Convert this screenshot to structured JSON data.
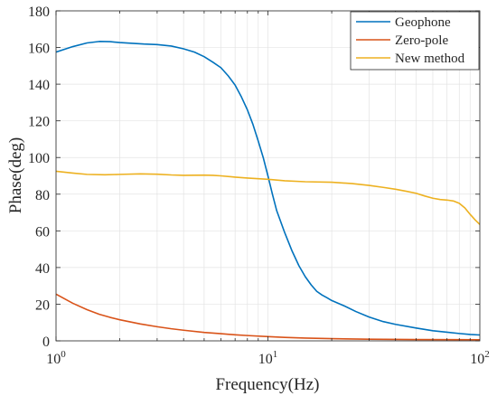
{
  "chart_data": {
    "type": "line",
    "title": "",
    "xlabel": "Frequency(Hz)",
    "ylabel": "Phase(deg)",
    "xscale": "log",
    "xlim": [
      1,
      100
    ],
    "ylim": [
      0,
      180
    ],
    "grid": true,
    "legend_position": "top-right",
    "xticks": [
      {
        "value": 1,
        "base": "10",
        "exp": "0"
      },
      {
        "value": 10,
        "base": "10",
        "exp": "1"
      },
      {
        "value": 100,
        "base": "10",
        "exp": "2"
      }
    ],
    "yticks": [
      "0",
      "20",
      "40",
      "60",
      "80",
      "100",
      "120",
      "140",
      "160",
      "180"
    ],
    "series": [
      {
        "name": "Geophone",
        "color": "#0072bd",
        "points": [
          [
            1,
            157.5
          ],
          [
            1.2,
            160.5
          ],
          [
            1.4,
            162.5
          ],
          [
            1.6,
            163.3
          ],
          [
            1.8,
            163.2
          ],
          [
            2,
            162.7
          ],
          [
            2.3,
            162.3
          ],
          [
            2.6,
            161.9
          ],
          [
            3,
            161.6
          ],
          [
            3.5,
            160.8
          ],
          [
            4,
            159.3
          ],
          [
            4.5,
            157.5
          ],
          [
            5,
            155
          ],
          [
            5.5,
            152
          ],
          [
            6,
            149
          ],
          [
            6.5,
            144.5
          ],
          [
            7,
            139.5
          ],
          [
            7.5,
            133
          ],
          [
            8,
            126
          ],
          [
            8.5,
            118
          ],
          [
            9,
            109
          ],
          [
            9.5,
            100
          ],
          [
            10,
            90
          ],
          [
            10.5,
            80
          ],
          [
            11,
            71
          ],
          [
            12,
            59
          ],
          [
            13,
            49
          ],
          [
            14,
            41
          ],
          [
            15,
            35
          ],
          [
            16,
            30.5
          ],
          [
            17,
            27
          ],
          [
            18,
            25
          ],
          [
            19,
            23.5
          ],
          [
            20,
            22
          ],
          [
            23,
            19
          ],
          [
            26,
            16
          ],
          [
            30,
            13
          ],
          [
            35,
            10.5
          ],
          [
            40,
            9
          ],
          [
            50,
            7
          ],
          [
            60,
            5.5
          ],
          [
            70,
            4.7
          ],
          [
            80,
            4
          ],
          [
            90,
            3.5
          ],
          [
            100,
            3.2
          ]
        ]
      },
      {
        "name": "Zero-pole",
        "color": "#d95319",
        "points": [
          [
            1,
            25.5
          ],
          [
            1.2,
            20.5
          ],
          [
            1.4,
            17
          ],
          [
            1.6,
            14.5
          ],
          [
            1.8,
            12.8
          ],
          [
            2,
            11.5
          ],
          [
            2.5,
            9.2
          ],
          [
            3,
            7.7
          ],
          [
            3.5,
            6.6
          ],
          [
            4,
            5.8
          ],
          [
            5,
            4.6
          ],
          [
            6,
            3.9
          ],
          [
            7,
            3.3
          ],
          [
            8,
            2.9
          ],
          [
            10,
            2.3
          ],
          [
            12,
            1.9
          ],
          [
            15,
            1.5
          ],
          [
            20,
            1.2
          ],
          [
            30,
            0.9
          ],
          [
            50,
            0.7
          ],
          [
            100,
            0.6
          ]
        ]
      },
      {
        "name": "New method",
        "color": "#edb120",
        "points": [
          [
            1,
            92.5
          ],
          [
            1.2,
            91.5
          ],
          [
            1.4,
            90.8
          ],
          [
            1.7,
            90.6
          ],
          [
            2,
            90.8
          ],
          [
            2.5,
            91.1
          ],
          [
            3,
            90.9
          ],
          [
            3.5,
            90.5
          ],
          [
            4,
            90.3
          ],
          [
            5,
            90.4
          ],
          [
            5.5,
            90.3
          ],
          [
            6,
            90
          ],
          [
            7,
            89.3
          ],
          [
            8,
            88.8
          ],
          [
            10,
            88.1
          ],
          [
            12,
            87.3
          ],
          [
            15,
            86.8
          ],
          [
            20,
            86.5
          ],
          [
            25,
            85.8
          ],
          [
            30,
            84.8
          ],
          [
            35,
            83.7
          ],
          [
            40,
            82.7
          ],
          [
            45,
            81.6
          ],
          [
            50,
            80.5
          ],
          [
            55,
            79
          ],
          [
            60,
            77.8
          ],
          [
            65,
            77.1
          ],
          [
            70,
            76.8
          ],
          [
            75,
            76.3
          ],
          [
            80,
            75
          ],
          [
            85,
            72.5
          ],
          [
            90,
            69
          ],
          [
            95,
            66
          ],
          [
            100,
            63.5
          ]
        ]
      }
    ]
  }
}
